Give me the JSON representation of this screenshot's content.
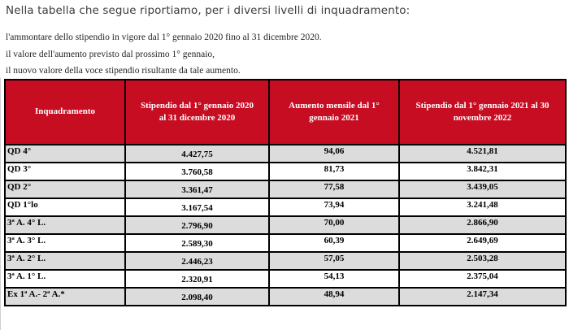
{
  "intro": {
    "title": "Nella tabella che segue riportiamo, per i diversi livelli di inquadramento:",
    "lines": [
      "l'ammontare dello stipendio in vigore dal 1° gennaio 2020 fino al 31 dicembre 2020.",
      "il valore dell'aumento previsto dal prossimo 1° gennaio,",
      "il nuovo valore della voce stipendio risultante da tale aumento."
    ]
  },
  "table": {
    "headers": [
      "Inquadramento",
      "Stipendio dal 1° gennaio 2020 al 31 dicembre 2020",
      "Aumento mensile dal 1° gennaio 2021",
      "Stipendio dal 1° gennaio 2021 al 30 novembre 2022"
    ],
    "rows": [
      [
        "QD 4°",
        "4.427,75",
        "94,06",
        "4.521,81"
      ],
      [
        "QD 3°",
        "3.760,58",
        "81,73",
        "3.842,31"
      ],
      [
        "QD 2°",
        "3.361,47",
        "77,58",
        "3.439,05"
      ],
      [
        "QD 1°lo",
        "3.167,54",
        "73,94",
        "3.241,48"
      ],
      [
        "3ª A. 4° L.",
        "2.796,90",
        "70,00",
        "2.866,90"
      ],
      [
        "3ª A. 3° L.",
        "2.589,30",
        "60,39",
        "2.649,69"
      ],
      [
        "3ª A. 2° L.",
        "2.446,23",
        "57,05",
        "2.503,28"
      ],
      [
        "3ª A. 1° L.",
        "2.320,91",
        "54,13",
        "2.375,04"
      ],
      [
        "Ex 1ª A.- 2ª A.*",
        "2.098,40",
        "48,94",
        "2.147,34"
      ]
    ],
    "colors": {
      "header_bg": "#C60D22",
      "header_text": "#FFFFFF",
      "row_alt_bg": "#DCDCDC",
      "border": "#000000"
    }
  }
}
